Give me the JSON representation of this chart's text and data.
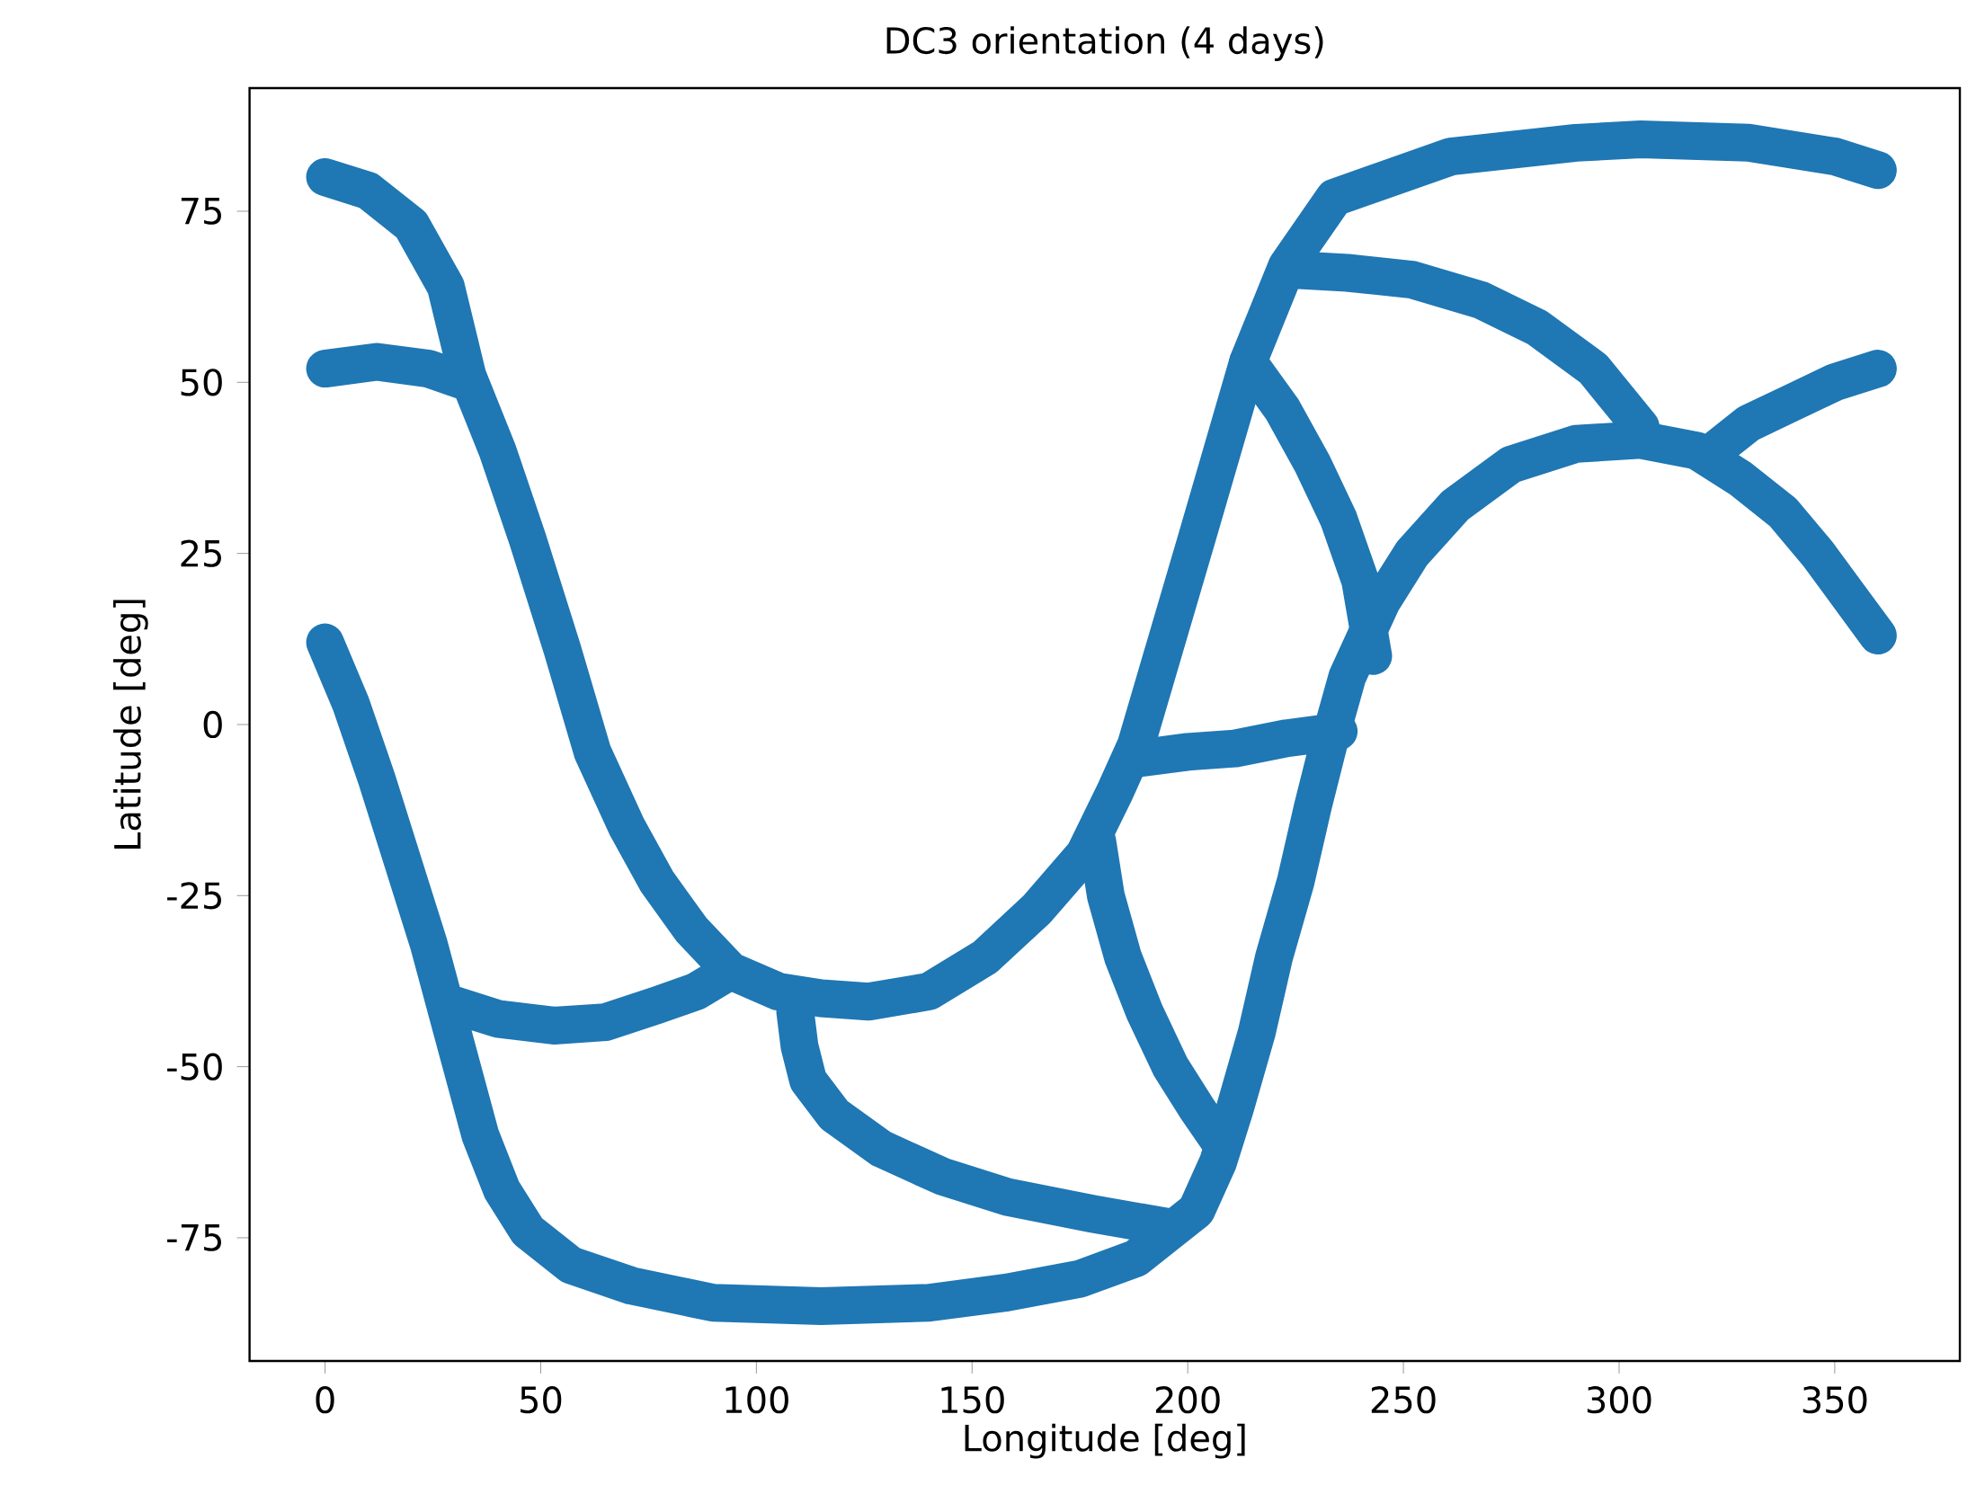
{
  "chart_data": {
    "type": "line",
    "title": "DC3 orientation (4 days)",
    "xlabel": "Longitude [deg]",
    "ylabel": "Latitude [deg]",
    "xlim": [
      -17.5,
      379
    ],
    "ylim": [
      -93,
      93
    ],
    "xticks": [
      0,
      50,
      100,
      150,
      200,
      250,
      300,
      350
    ],
    "yticks": [
      -75,
      -50,
      -25,
      0,
      25,
      50,
      75
    ],
    "line_style": "solid",
    "series": [
      {
        "color": "#1f77b4",
        "x": [
          0,
          10,
          20,
          28,
          33,
          40,
          47,
          55,
          62,
          70,
          77,
          85,
          94,
          105,
          115,
          126,
          140,
          153,
          165,
          176,
          183,
          188,
          195,
          202,
          208,
          214,
          223,
          234,
          261,
          290,
          305,
          330,
          350,
          360
        ],
        "values": [
          80,
          78,
          73,
          64,
          51,
          40,
          27,
          11,
          -4,
          -15,
          -23,
          -30,
          -36,
          -39,
          -40,
          -40.5,
          -39,
          -34,
          -27,
          -19,
          -10,
          -3,
          12,
          27,
          40,
          53,
          67,
          77,
          83,
          85,
          85.5,
          85,
          83,
          81
        ]
      },
      {
        "color": "#1f77b4",
        "x": [
          0,
          6,
          12,
          18,
          24,
          30,
          36,
          41,
          47,
          57,
          71,
          90,
          115,
          140,
          158,
          175,
          188,
          196,
          202,
          207,
          211,
          216,
          220,
          225,
          229,
          233,
          237,
          245,
          252,
          262,
          275,
          290,
          305,
          318,
          328,
          338,
          346,
          353,
          360
        ],
        "values": [
          12,
          3,
          -8,
          -20,
          -32,
          -46,
          -60,
          -68,
          -74,
          -79,
          -82,
          -84.5,
          -85,
          -84.5,
          -83,
          -81,
          -78,
          -74,
          -71,
          -64,
          -56,
          -45,
          -34,
          -23,
          -12,
          -2,
          7,
          18,
          25,
          32,
          38,
          41,
          41.6,
          40,
          36,
          31,
          25,
          19,
          13
        ]
      },
      {
        "color": "#1f77b4",
        "x": [
          0,
          12,
          24,
          33
        ],
        "values": [
          52,
          53,
          52,
          50
        ]
      },
      {
        "color": "#1f77b4",
        "x": [
          30,
          40,
          53,
          65,
          77,
          86,
          94
        ],
        "values": [
          -41,
          -43,
          -44,
          -43.5,
          -41,
          -39,
          -36
        ]
      },
      {
        "color": "#1f77b4",
        "x": [
          109,
          110,
          112,
          118,
          129,
          143,
          158,
          178,
          196
        ],
        "values": [
          -42,
          -47,
          -52,
          -57,
          -62,
          -66,
          -69,
          -71.5,
          -73.5
        ]
      },
      {
        "color": "#1f77b4",
        "x": [
          179,
          181,
          185,
          190,
          196,
          202,
          208
        ],
        "values": [
          -17,
          -25,
          -34,
          -42,
          -50,
          -56,
          -61.5
        ]
      },
      {
        "color": "#1f77b4",
        "x": [
          188,
          200,
          211,
          223,
          235
        ],
        "values": [
          -5,
          -4,
          -3.5,
          -2,
          -1
        ]
      },
      {
        "color": "#1f77b4",
        "x": [
          214,
          222,
          229,
          235,
          240,
          243
        ],
        "values": [
          53,
          46,
          38,
          30,
          21,
          10
        ]
      },
      {
        "color": "#1f77b4",
        "x": [
          223,
          237,
          252,
          268,
          281,
          294,
          305
        ],
        "values": [
          66.5,
          66,
          65,
          62,
          58,
          52,
          43.5
        ]
      },
      {
        "color": "#1f77b4",
        "x": [
          322,
          330,
          340,
          350,
          360
        ],
        "values": [
          40,
          44,
          47,
          50,
          52
        ]
      }
    ]
  }
}
